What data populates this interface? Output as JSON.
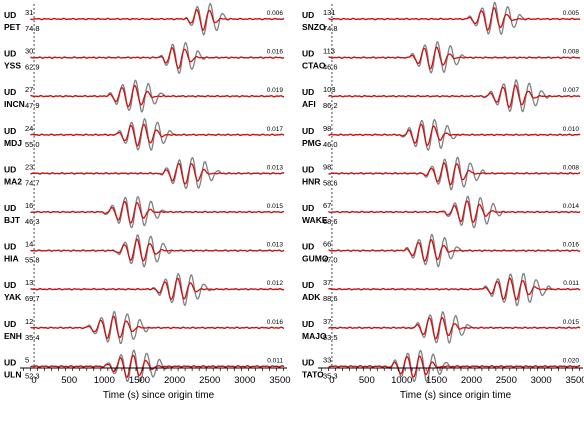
{
  "colors": {
    "observed": "#808080",
    "synthetic": "#d10f0f",
    "baseline": "#d10f0f",
    "axis": "#000000",
    "origin_line": "#000000"
  },
  "chart_data": [
    {
      "type": "line",
      "panel": "left",
      "xlabel": "Time (s) since origin time",
      "xlim": [
        -200,
        3600
      ],
      "xticks": [
        "0",
        "500",
        "1000",
        "1500",
        "2000",
        "2500",
        "3000",
        "3500"
      ],
      "tick_values": [
        0,
        500,
        1000,
        1500,
        2000,
        2500,
        3000,
        3500
      ],
      "origin_time_marker": 0,
      "series": [
        {
          "component": "UD",
          "station": "PET",
          "azimuth": "31",
          "distance": "74.8",
          "amplitude": "0.006",
          "arrival": 2130,
          "duration": 650
        },
        {
          "component": "UD",
          "station": "YSS",
          "azimuth": "30",
          "distance": "62.9",
          "amplitude": "0.016",
          "arrival": 1750,
          "duration": 700
        },
        {
          "component": "UD",
          "station": "INCN",
          "azimuth": "27",
          "distance": "47.9",
          "amplitude": "0.019",
          "arrival": 1000,
          "duration": 900
        },
        {
          "component": "UD",
          "station": "MDJ",
          "azimuth": "24",
          "distance": "55.0",
          "amplitude": "0.017",
          "arrival": 1100,
          "duration": 950
        },
        {
          "component": "UD",
          "station": "MA2",
          "azimuth": "23",
          "distance": "74.7",
          "amplitude": "0.013",
          "arrival": 1750,
          "duration": 950
        },
        {
          "component": "UD",
          "station": "BJT",
          "azimuth": "16",
          "distance": "46.3",
          "amplitude": "0.015",
          "arrival": 950,
          "duration": 950
        },
        {
          "component": "UD",
          "station": "HIA",
          "azimuth": "14",
          "distance": "55.8",
          "amplitude": "0.013",
          "arrival": 1100,
          "duration": 900
        },
        {
          "component": "UD",
          "station": "YAK",
          "azimuth": "13",
          "distance": "69.7",
          "amplitude": "0.012",
          "arrival": 1650,
          "duration": 900
        },
        {
          "component": "UD",
          "station": "ENH",
          "azimuth": "12",
          "distance": "35.4",
          "amplitude": "0.016",
          "arrival": 700,
          "duration": 1000
        },
        {
          "component": "UD",
          "station": "ULN",
          "azimuth": "5",
          "distance": "52.3",
          "amplitude": "0.011",
          "arrival": 950,
          "duration": 1000
        }
      ]
    },
    {
      "type": "line",
      "panel": "right",
      "xlabel": "Time (s) since origin time",
      "xlim": [
        -200,
        3600
      ],
      "xticks": [
        "0",
        "500",
        "1000",
        "1500",
        "2000",
        "2500",
        "3000",
        "3500"
      ],
      "tick_values": [
        0,
        500,
        1000,
        1500,
        2000,
        2500,
        3000,
        3500
      ],
      "origin_time_marker": 0,
      "series": [
        {
          "component": "UD",
          "station": "SNZO",
          "azimuth": "131",
          "distance": "74.8",
          "amplitude": "0.005",
          "arrival": 1900,
          "duration": 900
        },
        {
          "component": "UD",
          "station": "CTAO",
          "azimuth": "113",
          "distance": "46.6",
          "amplitude": "0.008",
          "arrival": 1050,
          "duration": 900
        },
        {
          "component": "UD",
          "station": "AFI",
          "azimuth": "103",
          "distance": "86.2",
          "amplitude": "0.007",
          "arrival": 2150,
          "duration": 1000
        },
        {
          "component": "UD",
          "station": "PMG",
          "azimuth": "98",
          "distance": "46.0",
          "amplitude": "0.010",
          "arrival": 950,
          "duration": 900
        },
        {
          "component": "UD",
          "station": "HNR",
          "azimuth": "98",
          "distance": "58.6",
          "amplitude": "0.008",
          "arrival": 1250,
          "duration": 1000
        },
        {
          "component": "UD",
          "station": "WAKE",
          "azimuth": "67",
          "distance": "68.6",
          "amplitude": "0.014",
          "arrival": 1550,
          "duration": 950
        },
        {
          "component": "UD",
          "station": "GUMO",
          "azimuth": "66",
          "distance": "47.0",
          "amplitude": "0.016",
          "arrival": 1000,
          "duration": 900
        },
        {
          "component": "UD",
          "station": "ADK",
          "azimuth": "37",
          "distance": "88.6",
          "amplitude": "0.011",
          "arrival": 2100,
          "duration": 1100
        },
        {
          "component": "UD",
          "station": "MAJO",
          "azimuth": "37",
          "distance": "53.5",
          "amplitude": "0.015",
          "arrival": 1100,
          "duration": 950
        },
        {
          "component": "UD",
          "station": "TATO",
          "azimuth": "33",
          "distance": "35.3",
          "amplitude": "0.020",
          "arrival": 750,
          "duration": 1000
        }
      ]
    }
  ]
}
